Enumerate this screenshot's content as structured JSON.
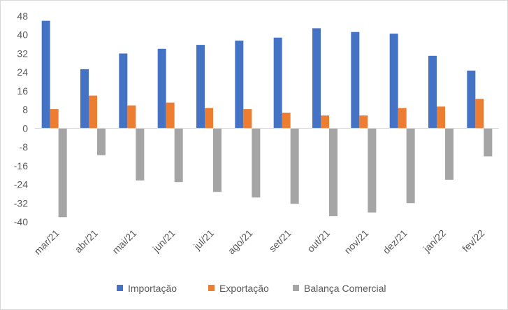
{
  "chart_data": {
    "type": "bar",
    "categories": [
      "mar/21",
      "abr/21",
      "mai/21",
      "jun/21",
      "jul/21",
      "ago/21",
      "set/21",
      "out/21",
      "nov/21",
      "dez/21",
      "jan/22",
      "fev/22"
    ],
    "series": [
      {
        "name": "Importação",
        "color": "#4472c4",
        "values": [
          46.0,
          25.3,
          32.0,
          34.0,
          35.7,
          37.5,
          38.8,
          42.8,
          41.2,
          40.5,
          31.0,
          24.7
        ]
      },
      {
        "name": "Exportação",
        "color": "#ed7d31",
        "values": [
          8.2,
          14.0,
          9.8,
          11.0,
          8.7,
          8.2,
          6.7,
          5.5,
          5.5,
          8.7,
          9.3,
          12.6
        ]
      },
      {
        "name": "Balança Comercial",
        "color": "#a5a5a5",
        "values": [
          -38.0,
          -11.5,
          -22.3,
          -23.0,
          -27.2,
          -29.6,
          -32.3,
          -37.6,
          -36.0,
          -32.0,
          -22.0,
          -12.0
        ]
      }
    ],
    "ylim": [
      -40,
      48
    ],
    "yticks": [
      48,
      40,
      32,
      24,
      16,
      8,
      0,
      -8,
      -16,
      -24,
      -32,
      -40
    ],
    "grid": false,
    "legend": "bottom",
    "title": "",
    "xlabel": "",
    "ylabel": ""
  }
}
